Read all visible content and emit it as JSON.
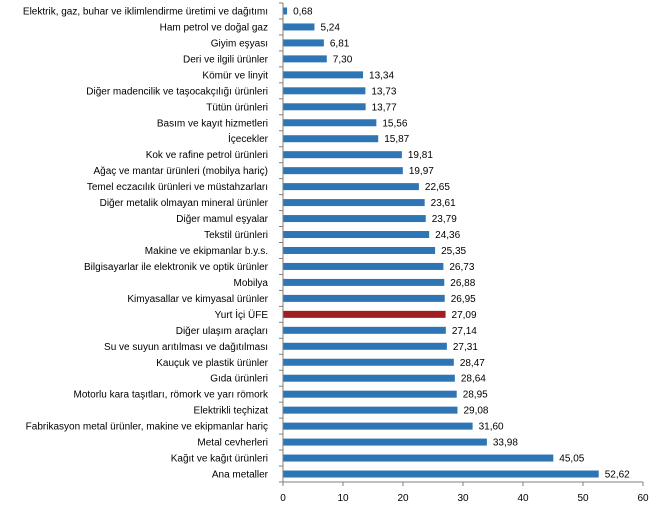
{
  "chart_data": {
    "type": "bar",
    "orientation": "horizontal",
    "categories": [
      "Elektrik, gaz, buhar ve iklimlendirme üretimi ve dağıtımı",
      "Ham petrol ve doğal gaz",
      "Giyim eşyası",
      "Deri ve ilgili ürünler",
      "Kömür ve linyit",
      "Diğer madencilik ve taşocakçılığı ürünleri",
      "Tütün ürünleri",
      "Basım ve kayıt hizmetleri",
      "İçecekler",
      "Kok ve rafine petrol ürünleri",
      "Ağaç ve mantar ürünleri (mobilya hariç)",
      "Temel eczacılık ürünleri ve müstahzarları",
      "Diğer metalik olmayan mineral ürünler",
      "Diğer mamul eşyalar",
      "Tekstil ürünleri",
      "Makine ve ekipmanlar b.y.s.",
      "Bilgisayarlar ile elektronik ve optik ürünler",
      "Mobilya",
      "Kimyasallar ve kimyasal ürünler",
      "Yurt İçi ÜFE",
      "Diğer ulaşım araçları",
      "Su ve suyun arıtılması ve dağıtılması",
      "Kauçuk ve plastik ürünler",
      "Gıda ürünleri",
      "Motorlu kara taşıtları, römork ve yarı römork",
      "Elektrikli teçhizat",
      "Fabrikasyon metal ürünler, makine ve ekipmanlar hariç",
      "Metal cevherleri",
      "Kağıt ve kağıt ürünleri",
      "Ana metaller"
    ],
    "values": [
      0.68,
      5.24,
      6.81,
      7.3,
      13.34,
      13.73,
      13.77,
      15.56,
      15.87,
      19.81,
      19.97,
      22.65,
      23.61,
      23.79,
      24.36,
      25.35,
      26.73,
      26.88,
      26.95,
      27.09,
      27.14,
      27.31,
      28.47,
      28.64,
      28.95,
      29.08,
      31.6,
      33.98,
      45.05,
      52.62
    ],
    "value_labels": [
      "0,68",
      "5,24",
      "6,81",
      "7,30",
      "13,34",
      "13,73",
      "13,77",
      "15,56",
      "15,87",
      "19,81",
      "19,97",
      "22,65",
      "23,61",
      "23,79",
      "24,36",
      "25,35",
      "26,73",
      "26,88",
      "26,95",
      "27,09",
      "27,14",
      "27,31",
      "28,47",
      "28,64",
      "28,95",
      "29,08",
      "31,60",
      "33,98",
      "45,05",
      "52,62"
    ],
    "highlight_index": 19,
    "xlim": [
      0,
      60
    ],
    "xticks": [
      0,
      10,
      20,
      30,
      40,
      50,
      60
    ],
    "xlabel": "",
    "ylabel": "",
    "title": "",
    "grid": false,
    "legend": "none",
    "colors": {
      "bar": "#2E75B6",
      "highlight": "#A11D21",
      "axis": "#808080"
    }
  }
}
